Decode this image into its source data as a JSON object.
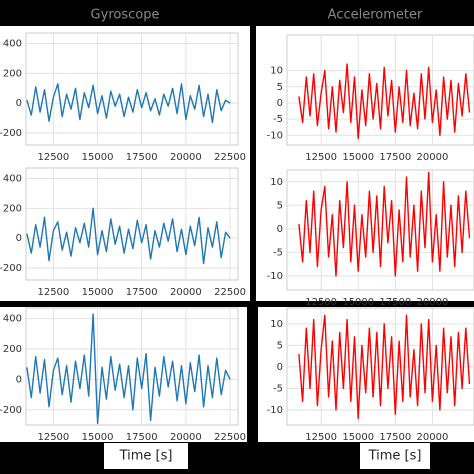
{
  "chart_data": [
    {
      "type": "line",
      "title": "Gyroscope",
      "color": "#1f77b4",
      "grid": true,
      "x": [
        11000,
        11250,
        11500,
        11750,
        12000,
        12250,
        12500,
        12750,
        13000,
        13250,
        13500,
        13750,
        14000,
        14250,
        14500,
        14750,
        15000,
        15250,
        15500,
        15750,
        16000,
        16250,
        16500,
        16750,
        17000,
        17250,
        17500,
        17750,
        18000,
        18250,
        18500,
        18750,
        19000,
        19250,
        19500,
        19750,
        20000,
        20250,
        20500,
        20750,
        21000,
        21250,
        21500,
        21750,
        22000,
        22250,
        22500
      ],
      "values": [
        20,
        -80,
        110,
        -60,
        90,
        -120,
        40,
        130,
        -90,
        60,
        -40,
        100,
        -110,
        70,
        -30,
        120,
        -70,
        50,
        -100,
        80,
        -20,
        60,
        -90,
        40,
        -60,
        90,
        -30,
        70,
        -50,
        30,
        -80,
        60,
        -20,
        100,
        -70,
        130,
        -110,
        50,
        -40,
        120,
        -90,
        60,
        -130,
        90,
        -50,
        20,
        0
      ],
      "xlim": [
        10950,
        22950
      ],
      "xticks": [
        12500,
        15000,
        17500,
        20000,
        22500
      ],
      "ylim": [
        -280,
        470
      ],
      "yticks": [
        -200,
        0,
        200,
        400
      ]
    },
    {
      "type": "line",
      "title": "Accelerometer",
      "color": "#ff0000",
      "grid": true,
      "x": [
        11000,
        11250,
        11500,
        11750,
        12000,
        12250,
        12500,
        12750,
        13000,
        13250,
        13500,
        13750,
        14000,
        14250,
        14500,
        14750,
        15000,
        15250,
        15500,
        15750,
        16000,
        16250,
        16500,
        16750,
        17000,
        17250,
        17500,
        17750,
        18000,
        18250,
        18500,
        18750,
        19000,
        19250,
        19500,
        19750,
        20000,
        20250,
        20500,
        20750,
        21000,
        21250,
        21500,
        21750,
        22000,
        22250,
        22500
      ],
      "values": [
        2,
        -6,
        8,
        -4,
        9,
        -7,
        3,
        10,
        -8,
        5,
        -9,
        7,
        -3,
        12,
        -6,
        8,
        -11,
        4,
        -7,
        9,
        -5,
        6,
        -8,
        11,
        -4,
        7,
        -9,
        5,
        -6,
        10,
        -7,
        3,
        -8,
        9,
        -5,
        11,
        -6,
        4,
        -10,
        8,
        -5,
        7,
        -9,
        6,
        -4,
        9,
        -3
      ],
      "xlim": [
        10200,
        22800
      ],
      "xticks": [
        12500,
        15000,
        17500,
        20000
      ],
      "ylim": [
        -13,
        21
      ],
      "yticks": [
        -10,
        -5,
        0,
        5,
        10
      ]
    },
    {
      "type": "line",
      "color": "#1f77b4",
      "grid": true,
      "x": [
        11000,
        11250,
        11500,
        11750,
        12000,
        12250,
        12500,
        12750,
        13000,
        13250,
        13500,
        13750,
        14000,
        14250,
        14500,
        14750,
        15000,
        15250,
        15500,
        15750,
        16000,
        16250,
        16500,
        16750,
        17000,
        17250,
        17500,
        17750,
        18000,
        18250,
        18500,
        18750,
        19000,
        19250,
        19500,
        19750,
        20000,
        20250,
        20500,
        20750,
        21000,
        21250,
        21500,
        21750,
        22000,
        22250,
        22500
      ],
      "values": [
        30,
        -100,
        90,
        -60,
        140,
        -150,
        50,
        110,
        -80,
        40,
        -120,
        70,
        -30,
        100,
        -60,
        200,
        -110,
        50,
        -90,
        130,
        -40,
        80,
        -100,
        60,
        -70,
        120,
        -30,
        90,
        -140,
        50,
        -60,
        100,
        -20,
        130,
        -90,
        60,
        -110,
        80,
        -50,
        140,
        -170,
        70,
        -60,
        110,
        -130,
        40,
        0
      ],
      "xlim": [
        10950,
        22950
      ],
      "xticks": [
        12500,
        15000,
        17500,
        20000,
        22500
      ],
      "ylim": [
        -280,
        470
      ],
      "yticks": [
        -200,
        0,
        200,
        400
      ]
    },
    {
      "type": "line",
      "color": "#ff0000",
      "grid": true,
      "x": [
        11000,
        11250,
        11500,
        11750,
        12000,
        12250,
        12500,
        12750,
        13000,
        13250,
        13500,
        13750,
        14000,
        14250,
        14500,
        14750,
        15000,
        15250,
        15500,
        15750,
        16000,
        16250,
        16500,
        16750,
        17000,
        17250,
        17500,
        17750,
        18000,
        18250,
        18500,
        18750,
        19000,
        19250,
        19500,
        19750,
        20000,
        20250,
        20500,
        20750,
        21000,
        21250,
        21500,
        21750,
        22000,
        22250,
        22500
      ],
      "values": [
        1,
        -7,
        6,
        -5,
        8,
        -8,
        4,
        9,
        -6,
        3,
        -10,
        6,
        -4,
        10,
        -7,
        5,
        -9,
        3,
        -6,
        8,
        -5,
        7,
        -8,
        9,
        -3,
        6,
        -10,
        4,
        -7,
        11,
        -6,
        5,
        -9,
        8,
        -4,
        12,
        -7,
        3,
        -9,
        10,
        -6,
        5,
        -8,
        7,
        -5,
        8,
        -2
      ],
      "xlim": [
        10200,
        22800
      ],
      "xticks": [
        12500,
        15000,
        17500,
        20000
      ],
      "ylim": [
        -13,
        12.5
      ],
      "yticks": [
        -10,
        -5,
        0,
        5,
        10
      ]
    },
    {
      "type": "line",
      "color": "#1f77b4",
      "grid": true,
      "xlabel": "Time [s]",
      "x": [
        11000,
        11250,
        11500,
        11750,
        12000,
        12250,
        12500,
        12750,
        13000,
        13250,
        13500,
        13750,
        14000,
        14250,
        14500,
        14750,
        15000,
        15250,
        15500,
        15750,
        16000,
        16250,
        16500,
        16750,
        17000,
        17250,
        17500,
        17750,
        18000,
        18250,
        18500,
        18750,
        19000,
        19250,
        19500,
        19750,
        20000,
        20250,
        20500,
        20750,
        21000,
        21250,
        21500,
        21750,
        22000,
        22250,
        22500
      ],
      "values": [
        80,
        -120,
        150,
        -90,
        130,
        -180,
        60,
        140,
        -100,
        90,
        -150,
        120,
        -60,
        160,
        -110,
        430,
        -290,
        80,
        -130,
        150,
        -70,
        100,
        -120,
        90,
        -200,
        140,
        -60,
        170,
        -270,
        80,
        -110,
        150,
        -50,
        120,
        -140,
        90,
        -160,
        110,
        -80,
        160,
        -180,
        90,
        -120,
        140,
        -100,
        60,
        0
      ],
      "xlim": [
        10950,
        22950
      ],
      "xticks": [
        12500,
        15000,
        17500,
        20000,
        22500
      ],
      "ylim": [
        -300,
        470
      ],
      "yticks": [
        -200,
        0,
        200,
        400
      ]
    },
    {
      "type": "line",
      "color": "#ff0000",
      "grid": true,
      "xlabel": "Time [s]",
      "x": [
        11000,
        11250,
        11500,
        11750,
        12000,
        12250,
        12500,
        12750,
        13000,
        13250,
        13500,
        13750,
        14000,
        14250,
        14500,
        14750,
        15000,
        15250,
        15500,
        15750,
        16000,
        16250,
        16500,
        16750,
        17000,
        17250,
        17500,
        17750,
        18000,
        18250,
        18500,
        18750,
        19000,
        19250,
        19500,
        19750,
        20000,
        20250,
        20500,
        20750,
        21000,
        21250,
        21500,
        21750,
        22000,
        22250,
        22500
      ],
      "values": [
        3,
        -8,
        9,
        -5,
        11,
        -9,
        4,
        12,
        -7,
        6,
        -10,
        8,
        -5,
        11,
        -8,
        7,
        -12,
        5,
        -6,
        9,
        -7,
        8,
        -9,
        10,
        -5,
        7,
        -11,
        6,
        -8,
        12,
        -7,
        4,
        -9,
        10,
        -6,
        11,
        -8,
        5,
        -10,
        9,
        -6,
        7,
        -9,
        8,
        -5,
        9,
        -4
      ],
      "xlim": [
        10200,
        22800
      ],
      "xticks": [
        12500,
        15000,
        17500,
        20000
      ],
      "ylim": [
        -13.5,
        13.7
      ],
      "yticks": [
        -10,
        -5,
        0,
        5,
        10
      ]
    }
  ]
}
